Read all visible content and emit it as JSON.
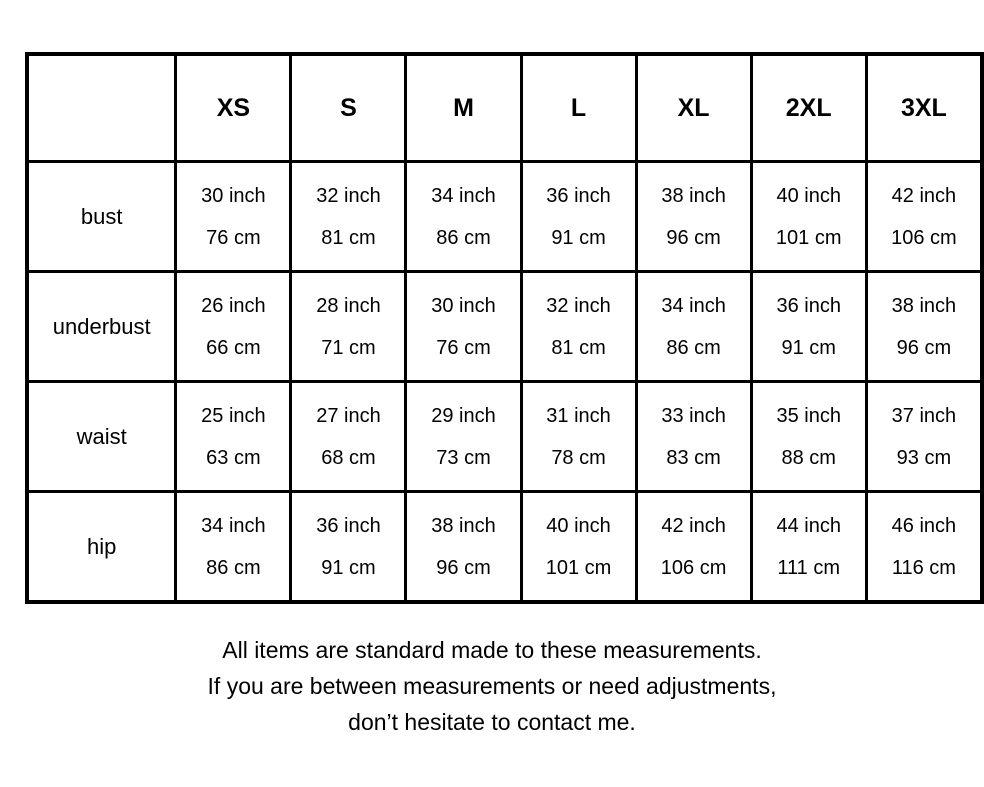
{
  "colors": {
    "background": "#ffffff",
    "border": "#000000",
    "text": "#000000"
  },
  "table": {
    "corner_label": "",
    "size_headers": [
      "XS",
      "S",
      "M",
      "L",
      "XL",
      "2XL",
      "3XL"
    ],
    "rows": [
      {
        "label": "bust",
        "cells": [
          {
            "inch": "30 inch",
            "cm": "76 cm"
          },
          {
            "inch": "32 inch",
            "cm": "81 cm"
          },
          {
            "inch": "34 inch",
            "cm": "86 cm"
          },
          {
            "inch": "36 inch",
            "cm": "91 cm"
          },
          {
            "inch": "38 inch",
            "cm": "96 cm"
          },
          {
            "inch": "40 inch",
            "cm": "101 cm"
          },
          {
            "inch": "42 inch",
            "cm": "106 cm"
          }
        ]
      },
      {
        "label": "underbust",
        "cells": [
          {
            "inch": "26 inch",
            "cm": "66 cm"
          },
          {
            "inch": "28 inch",
            "cm": "71 cm"
          },
          {
            "inch": "30 inch",
            "cm": "76 cm"
          },
          {
            "inch": "32 inch",
            "cm": "81 cm"
          },
          {
            "inch": "34 inch",
            "cm": "86 cm"
          },
          {
            "inch": "36 inch",
            "cm": "91 cm"
          },
          {
            "inch": "38 inch",
            "cm": "96 cm"
          }
        ]
      },
      {
        "label": "waist",
        "cells": [
          {
            "inch": "25 inch",
            "cm": "63 cm"
          },
          {
            "inch": "27 inch",
            "cm": "68 cm"
          },
          {
            "inch": "29 inch",
            "cm": "73 cm"
          },
          {
            "inch": "31 inch",
            "cm": "78 cm"
          },
          {
            "inch": "33 inch",
            "cm": "83 cm"
          },
          {
            "inch": "35 inch",
            "cm": "88 cm"
          },
          {
            "inch": "37 inch",
            "cm": "93 cm"
          }
        ]
      },
      {
        "label": "hip",
        "cells": [
          {
            "inch": "34 inch",
            "cm": "86 cm"
          },
          {
            "inch": "36 inch",
            "cm": "91 cm"
          },
          {
            "inch": "38 inch",
            "cm": "96 cm"
          },
          {
            "inch": "40 inch",
            "cm": "101 cm"
          },
          {
            "inch": "42 inch",
            "cm": "106 cm"
          },
          {
            "inch": "44 inch",
            "cm": "111 cm"
          },
          {
            "inch": "46 inch",
            "cm": "116 cm"
          }
        ]
      }
    ]
  },
  "footer": {
    "lines": [
      "All items are standard made to these measurements.",
      "If you are between measurements or need adjustments,",
      "don’t hesitate to contact me."
    ]
  }
}
